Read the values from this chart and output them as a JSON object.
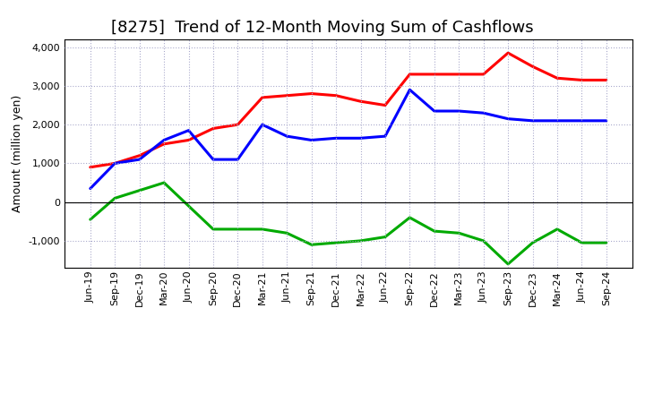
{
  "title": "[8275]  Trend of 12-Month Moving Sum of Cashflows",
  "ylabel": "Amount (million yen)",
  "xlabels": [
    "Jun-19",
    "Sep-19",
    "Dec-19",
    "Mar-20",
    "Jun-20",
    "Sep-20",
    "Dec-20",
    "Mar-21",
    "Jun-21",
    "Sep-21",
    "Dec-21",
    "Mar-22",
    "Jun-22",
    "Sep-22",
    "Dec-22",
    "Mar-23",
    "Jun-23",
    "Sep-23",
    "Dec-23",
    "Mar-24",
    "Jun-24",
    "Sep-24"
  ],
  "operating_cashflow": [
    900,
    1000,
    1200,
    1500,
    1600,
    1900,
    2000,
    2700,
    2750,
    2800,
    2750,
    2600,
    2500,
    3300,
    3300,
    3300,
    3300,
    3850,
    3500,
    3200,
    3150,
    3150
  ],
  "investing_cashflow": [
    -450,
    100,
    300,
    500,
    -100,
    -700,
    -700,
    -700,
    -800,
    -1100,
    -1050,
    -1000,
    -900,
    -400,
    -750,
    -800,
    -1000,
    -1600,
    -1050,
    -700,
    -1050,
    -1050
  ],
  "free_cashflow": [
    350,
    1000,
    1100,
    1600,
    1850,
    1100,
    1100,
    2000,
    1700,
    1600,
    1650,
    1650,
    1700,
    2900,
    2350,
    2350,
    2300,
    2150,
    2100,
    2100,
    2100,
    2100
  ],
  "ylim": [
    -1700,
    4200
  ],
  "yticks": [
    -1000,
    0,
    1000,
    2000,
    3000,
    4000
  ],
  "operating_color": "#FF0000",
  "investing_color": "#00AA00",
  "free_color": "#0000FF",
  "background_color": "#FFFFFF",
  "plot_bg_color": "#FFFFFF",
  "grid_color": "#AAAACC",
  "line_width": 2.2,
  "title_fontsize": 13,
  "legend_fontsize": 10,
  "tick_fontsize": 8,
  "ylabel_fontsize": 9
}
